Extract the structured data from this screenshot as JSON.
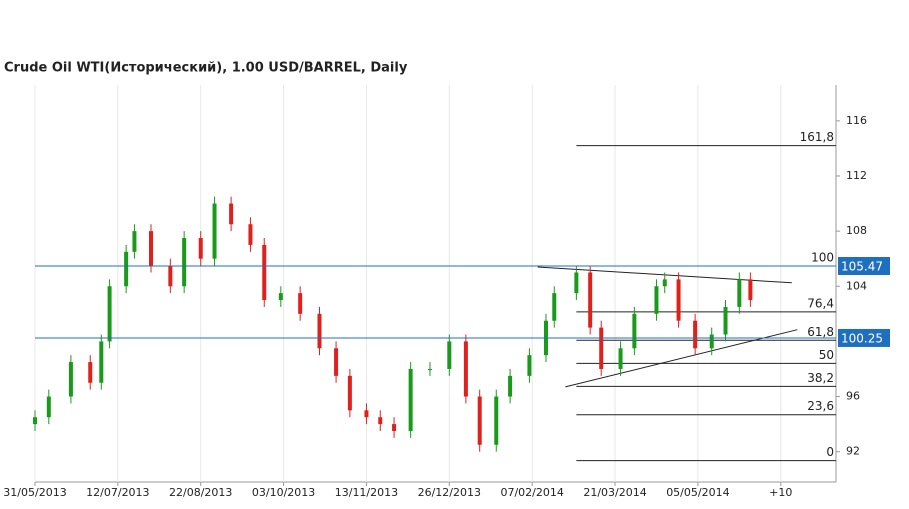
{
  "chart_data": {
    "type": "candlestick",
    "title": "Crude Oil WTI(Исторический), 1.00 USD/BARREL, Daily",
    "x": [
      0,
      5,
      13,
      20,
      24,
      27,
      33,
      36,
      42,
      49,
      54,
      60,
      65,
      71,
      78,
      83,
      89,
      96,
      103,
      109,
      114,
      120,
      125,
      130,
      136,
      143,
      150,
      156,
      161,
      167,
      172,
      179,
      185,
      188,
      196,
      201,
      205,
      212,
      217,
      225,
      228,
      233,
      239,
      245,
      250,
      255,
      259
    ],
    "open": [
      94,
      94.5,
      96,
      98.5,
      97,
      100,
      104,
      106.5,
      108,
      105.5,
      104,
      107.5,
      106,
      110,
      108.5,
      107,
      103,
      103.5,
      102,
      99.5,
      97.5,
      95,
      94.5,
      94,
      93.5,
      98,
      98,
      100,
      96,
      92.5,
      96,
      97.5,
      99,
      101.5,
      103.5,
      105,
      101,
      98,
      99.5,
      102,
      104,
      104.5,
      101.5,
      99.5,
      100.5,
      102.5,
      104.5
    ],
    "high": [
      95,
      96.5,
      99,
      99,
      100.5,
      104.5,
      107,
      108.5,
      108.5,
      106,
      108,
      108,
      110.5,
      110.5,
      109,
      107.5,
      104,
      104,
      102.5,
      100,
      98,
      95.5,
      95,
      94.5,
      98.5,
      98.5,
      100.5,
      100.5,
      96.5,
      96.5,
      98,
      99.5,
      102,
      104,
      105.5,
      105.5,
      101.5,
      100,
      102.5,
      104.5,
      105,
      105,
      102,
      101,
      103,
      105,
      105
    ],
    "low": [
      93.5,
      94,
      95.5,
      96.5,
      96.5,
      99.5,
      103.5,
      106,
      105,
      103.5,
      103.5,
      105.5,
      105.5,
      108,
      106.5,
      102.5,
      102.5,
      101.5,
      99,
      97,
      94.5,
      94,
      93.5,
      93,
      93,
      97.5,
      97.5,
      95.5,
      92,
      92,
      95.5,
      97,
      98.5,
      101,
      103,
      100.5,
      97.5,
      97.5,
      99,
      101.5,
      103.5,
      101,
      99,
      99,
      100,
      102,
      102.5
    ],
    "close": [
      94.5,
      96,
      98.5,
      97,
      100,
      104,
      106.5,
      108,
      105.5,
      104,
      107.5,
      106,
      110,
      108.5,
      107,
      103,
      103.5,
      102,
      99.5,
      97.5,
      95,
      94.5,
      94,
      93.5,
      98,
      98,
      100,
      96,
      92.5,
      96,
      97.5,
      99,
      101.5,
      103.5,
      105,
      101,
      98,
      99.5,
      102,
      104,
      104.5,
      101.5,
      99.5,
      100.5,
      102.5,
      104.5,
      103
    ],
    "up_color": "#1a9a1a",
    "down_color": "#e0201c",
    "xlim": [
      0,
      290
    ],
    "xticks": [
      {
        "value": 0,
        "label": "31/05/2013"
      },
      {
        "value": 30,
        "label": "12/07/2013"
      },
      {
        "value": 60,
        "label": "22/08/2013"
      },
      {
        "value": 90,
        "label": "03/10/2013"
      },
      {
        "value": 120,
        "label": "13/11/2013"
      },
      {
        "value": 150,
        "label": "26/12/2013"
      },
      {
        "value": 180,
        "label": "07/02/2014"
      },
      {
        "value": 210,
        "label": "21/03/2014"
      },
      {
        "value": 240,
        "label": "05/05/2014"
      },
      {
        "value": 270,
        "label": "+10"
      }
    ],
    "ylim": [
      89.8,
      118.6
    ],
    "yticks": [
      92,
      96,
      104,
      108,
      112,
      116
    ],
    "grid": true,
    "hlines": [
      {
        "value": 105.47,
        "color": "#1f6fbf"
      },
      {
        "value": 100.25,
        "color": "#1f6fbf"
      }
    ],
    "fib_start": 196,
    "fib_levels": [
      {
        "label": "161,8",
        "price": 114.2
      },
      {
        "label": "100",
        "price": 105.47
      },
      {
        "label": "76,4",
        "price": 102.14
      },
      {
        "label": "61,8",
        "price": 100.08
      },
      {
        "label": "50",
        "price": 98.41
      },
      {
        "label": "38,2",
        "price": 96.74
      },
      {
        "label": "23,6",
        "price": 94.68
      },
      {
        "label": "0",
        "price": 91.35
      }
    ],
    "trendlines": [
      {
        "x": [
          182,
          274
        ],
        "y": [
          105.4,
          104.25
        ]
      },
      {
        "x": [
          192,
          276
        ],
        "y": [
          96.7,
          100.85
        ]
      }
    ]
  }
}
